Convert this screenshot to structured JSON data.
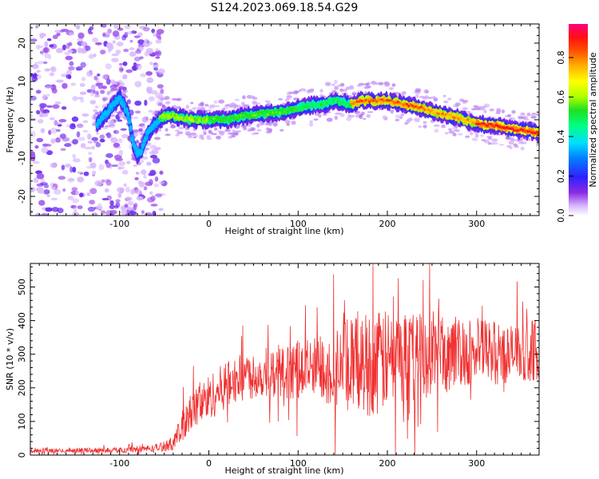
{
  "title": "S124.2023.069.18.54.G29",
  "chart_data": [
    {
      "type": "heatmap",
      "xlabel": "Height of straight line (km)",
      "ylabel": "Frequency (Hz)",
      "xlim": [
        -200,
        370
      ],
      "ylim": [
        -25,
        25
      ],
      "x_ticks": [
        -100,
        0,
        100,
        200,
        300
      ],
      "y_ticks": [
        -20,
        -10,
        0,
        10,
        20
      ],
      "colorbar": {
        "label": "Normalized spectral amplitude",
        "range": [
          0,
          0.97
        ],
        "ticks": [
          0.0,
          0.2,
          0.4,
          0.6,
          0.8
        ]
      },
      "ridge": {
        "x": [
          -125,
          -110,
          -100,
          -90,
          -85,
          -80,
          -75,
          -70,
          -60,
          -50,
          -40,
          -20,
          0,
          20,
          40,
          60,
          80,
          100,
          110,
          120,
          130,
          140,
          150,
          160,
          170,
          180,
          190,
          200,
          210,
          220,
          240,
          260,
          280,
          300,
          320,
          340,
          360,
          370
        ],
        "freq": [
          -1,
          3,
          6,
          1,
          -6,
          -9,
          -8,
          -4,
          -1,
          1,
          1,
          0,
          0,
          0,
          1,
          1.5,
          2,
          3,
          3.5,
          4,
          4,
          5,
          4.5,
          4,
          5,
          5,
          5,
          5,
          4.5,
          4,
          3,
          1.5,
          0.5,
          -1,
          -1.5,
          -2.5,
          -3,
          -3.5
        ]
      }
    },
    {
      "type": "line",
      "xlabel": "Height of straight line (km)",
      "ylabel": "SNR (10 * v/v)",
      "xlim": [
        -200,
        370
      ],
      "ylim": [
        0,
        570
      ],
      "x_ticks": [
        -100,
        0,
        100,
        200,
        300
      ],
      "y_ticks": [
        0,
        100,
        200,
        300,
        400,
        500
      ],
      "series": [
        {
          "color": "#f03030",
          "x": [
            -200,
            -150,
            -100,
            -60,
            -40,
            -30,
            -20,
            0,
            20,
            40,
            60,
            80,
            100,
            120,
            140,
            160,
            180,
            200,
            220,
            240,
            260,
            280,
            300,
            320,
            340,
            360,
            370
          ],
          "values": [
            12,
            14,
            15,
            20,
            35,
            80,
            130,
            170,
            210,
            235,
            240,
            245,
            250,
            255,
            265,
            270,
            275,
            280,
            290,
            295,
            300,
            305,
            310,
            305,
            300,
            310,
            315
          ],
          "spread": [
            6,
            7,
            8,
            12,
            20,
            50,
            60,
            70,
            70,
            70,
            70,
            75,
            85,
            100,
            120,
            140,
            160,
            150,
            140,
            130,
            120,
            110,
            100,
            95,
            90,
            90,
            90
          ]
        }
      ]
    }
  ]
}
